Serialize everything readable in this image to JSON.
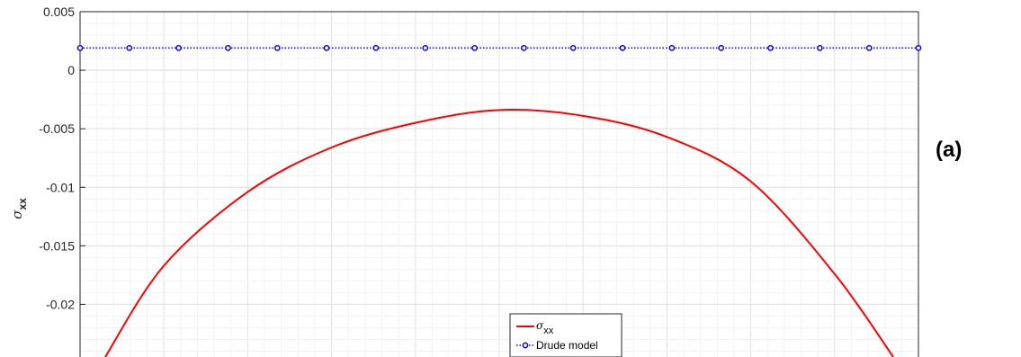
{
  "panel_label": "(a)",
  "chart_data": {
    "type": "line",
    "ylabel_symbol": "σ",
    "ylabel_subscript": "xx",
    "xlim": [
      0,
      1
    ],
    "ylim": [
      -0.0245,
      0.005
    ],
    "yticks": [
      0.005,
      0,
      -0.005,
      -0.01,
      -0.015,
      -0.02
    ],
    "ytick_labels": [
      "0.005",
      "0",
      "-0.005",
      "-0.01",
      "-0.015",
      "-0.02"
    ],
    "grid": true,
    "minor_grid": true,
    "legend_position": "bottom-center",
    "series": [
      {
        "name_symbol": "σ",
        "name_subscript": "xx",
        "color": "#ff0000",
        "style": "solid",
        "x": [
          0.03,
          0.1,
          0.2,
          0.3,
          0.4,
          0.5,
          0.6,
          0.7,
          0.8,
          0.9,
          0.97
        ],
        "y": [
          -0.0245,
          -0.0167,
          -0.0104,
          -0.0066,
          -0.0045,
          -0.0034,
          -0.0039,
          -0.0057,
          -0.0095,
          -0.0174,
          -0.0245
        ]
      },
      {
        "name": "Drude model",
        "color": "#0000ff",
        "style": "dotted",
        "marker": "circle",
        "x": [
          0,
          0.0588,
          0.1176,
          0.1765,
          0.2353,
          0.2941,
          0.3529,
          0.4118,
          0.4706,
          0.5294,
          0.5882,
          0.6471,
          0.7059,
          0.7647,
          0.8235,
          0.8824,
          0.9412,
          1.0
        ],
        "y": [
          0.0019,
          0.0019,
          0.0019,
          0.0019,
          0.0019,
          0.0019,
          0.0019,
          0.0019,
          0.0019,
          0.0019,
          0.0019,
          0.0019,
          0.0019,
          0.0019,
          0.0019,
          0.0019,
          0.0019,
          0.0019
        ]
      }
    ]
  }
}
